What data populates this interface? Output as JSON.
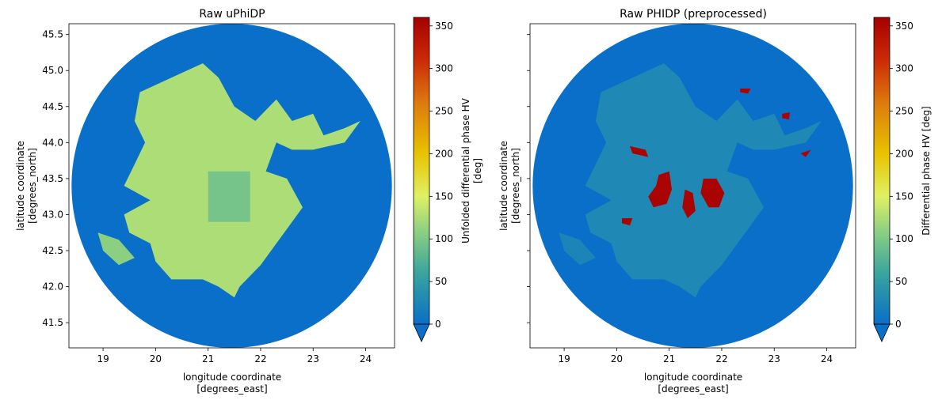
{
  "colormap": {
    "name": "HomeyerRainbow-like",
    "stops": [
      {
        "v": 0,
        "c": "#0a6fc9"
      },
      {
        "v": 60,
        "c": "#3aa49d"
      },
      {
        "v": 110,
        "c": "#8fd180"
      },
      {
        "v": 150,
        "c": "#e0f064"
      },
      {
        "v": 200,
        "c": "#e8c300"
      },
      {
        "v": 260,
        "c": "#dd7a0e"
      },
      {
        "v": 310,
        "c": "#cc2a08"
      },
      {
        "v": 360,
        "c": "#a50000"
      }
    ],
    "under_color": "#0a6fc9"
  },
  "chart_data": [
    {
      "type": "heatmap",
      "title": "Raw uPhiDP",
      "xlabel": "longitude coordinate\n[degrees_east]",
      "ylabel": "latitude coordinate\n[degrees_north]",
      "xlim": [
        18.35,
        24.55
      ],
      "ylim": [
        41.15,
        45.65
      ],
      "xticks": [
        19,
        20,
        21,
        22,
        23,
        24
      ],
      "yticks": [
        41.5,
        42.0,
        42.5,
        43.0,
        43.5,
        44.0,
        44.5,
        45.0,
        45.5
      ],
      "ytick_labels": [
        "41.5",
        "42.0",
        "42.5",
        "43.0",
        "43.5",
        "44.0",
        "44.5",
        "45.0",
        "45.5"
      ],
      "radar_center": [
        21.45,
        43.4
      ],
      "radar_range_deg": {
        "lon": 3.05,
        "lat": 2.25
      },
      "background_value": 0,
      "colorbar": {
        "label": "Unfolded differential phase HV\n[deg]",
        "ticks": [
          0,
          50,
          100,
          150,
          200,
          250,
          300,
          350
        ],
        "range": [
          0,
          360
        ],
        "extend": "min"
      },
      "regions": [
        {
          "value": 125,
          "polygon": [
            [
              19.7,
              44.7
            ],
            [
              20.3,
              44.9
            ],
            [
              20.9,
              45.1
            ],
            [
              21.2,
              44.9
            ],
            [
              21.5,
              44.5
            ],
            [
              21.9,
              44.3
            ],
            [
              22.3,
              44.6
            ],
            [
              22.6,
              44.3
            ],
            [
              23.0,
              44.4
            ],
            [
              23.2,
              44.1
            ],
            [
              23.6,
              44.2
            ],
            [
              23.9,
              44.3
            ],
            [
              23.6,
              44.0
            ],
            [
              23.0,
              43.9
            ],
            [
              22.6,
              43.9
            ],
            [
              22.3,
              44.0
            ],
            [
              22.1,
              43.6
            ],
            [
              22.5,
              43.5
            ],
            [
              22.8,
              43.1
            ],
            [
              22.5,
              42.8
            ],
            [
              22.2,
              42.5
            ],
            [
              22.0,
              42.3
            ],
            [
              21.6,
              42.0
            ],
            [
              21.5,
              41.85
            ],
            [
              21.2,
              42.0
            ],
            [
              20.9,
              42.1
            ],
            [
              20.3,
              42.1
            ],
            [
              20.0,
              42.35
            ],
            [
              19.9,
              42.6
            ],
            [
              19.5,
              42.75
            ],
            [
              19.4,
              43.0
            ],
            [
              19.9,
              43.2
            ],
            [
              19.4,
              43.4
            ],
            [
              19.6,
              43.7
            ],
            [
              19.8,
              44.0
            ],
            [
              19.6,
              44.3
            ]
          ]
        },
        {
          "value": 108,
          "polygon": [
            [
              18.9,
              42.75
            ],
            [
              19.3,
              42.65
            ],
            [
              19.6,
              42.4
            ],
            [
              19.3,
              42.3
            ],
            [
              19.0,
              42.5
            ]
          ]
        },
        {
          "value": 95,
          "polygon": [
            [
              21.0,
              42.9
            ],
            [
              21.8,
              42.9
            ],
            [
              21.8,
              43.6
            ],
            [
              21.0,
              43.6
            ]
          ]
        }
      ]
    },
    {
      "type": "heatmap",
      "title": "Raw PHIDP (preprocessed)",
      "xlabel": "longitude coordinate\n[degrees_east]",
      "ylabel": "latitude coordinate\n[degrees_north]",
      "xlim": [
        18.35,
        24.55
      ],
      "ylim": [
        41.15,
        45.65
      ],
      "xticks": [
        19,
        20,
        21,
        22,
        23,
        24
      ],
      "yticks": [
        41.5,
        42.0,
        42.5,
        43.0,
        43.5,
        44.0,
        44.5,
        45.0,
        45.5
      ],
      "ytick_labels": [],
      "radar_center": [
        21.45,
        43.4
      ],
      "radar_range_deg": {
        "lon": 3.05,
        "lat": 2.25
      },
      "background_value": 0,
      "colorbar": {
        "label": "Differential phase HV [deg]",
        "ticks": [
          0,
          50,
          100,
          150,
          200,
          250,
          300,
          350
        ],
        "range": [
          0,
          360
        ],
        "extend": "min"
      },
      "regions": [
        {
          "value": 28,
          "polygon": [
            [
              19.7,
              44.7
            ],
            [
              20.3,
              44.9
            ],
            [
              20.9,
              45.1
            ],
            [
              21.2,
              44.9
            ],
            [
              21.5,
              44.5
            ],
            [
              21.9,
              44.3
            ],
            [
              22.3,
              44.6
            ],
            [
              22.6,
              44.3
            ],
            [
              23.0,
              44.4
            ],
            [
              23.2,
              44.1
            ],
            [
              23.6,
              44.2
            ],
            [
              23.9,
              44.3
            ],
            [
              23.6,
              44.0
            ],
            [
              23.0,
              43.9
            ],
            [
              22.6,
              43.9
            ],
            [
              22.3,
              44.0
            ],
            [
              22.1,
              43.6
            ],
            [
              22.5,
              43.5
            ],
            [
              22.8,
              43.1
            ],
            [
              22.5,
              42.8
            ],
            [
              22.2,
              42.5
            ],
            [
              22.0,
              42.3
            ],
            [
              21.6,
              42.0
            ],
            [
              21.5,
              41.85
            ],
            [
              21.2,
              42.0
            ],
            [
              20.9,
              42.1
            ],
            [
              20.3,
              42.1
            ],
            [
              20.0,
              42.35
            ],
            [
              19.9,
              42.6
            ],
            [
              19.5,
              42.75
            ],
            [
              19.4,
              43.0
            ],
            [
              19.9,
              43.2
            ],
            [
              19.4,
              43.4
            ],
            [
              19.6,
              43.7
            ],
            [
              19.8,
              44.0
            ],
            [
              19.6,
              44.3
            ]
          ]
        },
        {
          "value": 24,
          "polygon": [
            [
              18.9,
              42.75
            ],
            [
              19.3,
              42.65
            ],
            [
              19.6,
              42.4
            ],
            [
              19.3,
              42.3
            ],
            [
              19.0,
              42.5
            ]
          ]
        },
        {
          "value": 355,
          "polygon": [
            [
              20.8,
              43.55
            ],
            [
              21.0,
              43.6
            ],
            [
              21.05,
              43.35
            ],
            [
              20.95,
              43.15
            ],
            [
              20.7,
              43.1
            ],
            [
              20.6,
              43.25
            ],
            [
              20.75,
              43.4
            ]
          ]
        },
        {
          "value": 355,
          "polygon": [
            [
              21.3,
              43.35
            ],
            [
              21.45,
              43.3
            ],
            [
              21.5,
              43.05
            ],
            [
              21.35,
              42.95
            ],
            [
              21.25,
              43.1
            ]
          ]
        },
        {
          "value": 355,
          "polygon": [
            [
              21.65,
              43.5
            ],
            [
              21.9,
              43.5
            ],
            [
              22.05,
              43.3
            ],
            [
              21.95,
              43.1
            ],
            [
              21.75,
              43.1
            ],
            [
              21.6,
              43.3
            ]
          ]
        },
        {
          "value": 355,
          "polygon": [
            [
              20.25,
              43.95
            ],
            [
              20.55,
              43.9
            ],
            [
              20.6,
              43.8
            ],
            [
              20.3,
              43.85
            ]
          ]
        },
        {
          "value": 355,
          "polygon": [
            [
              20.1,
              42.95
            ],
            [
              20.3,
              42.95
            ],
            [
              20.25,
              42.85
            ],
            [
              20.1,
              42.88
            ]
          ]
        },
        {
          "value": 355,
          "polygon": [
            [
              22.35,
              44.75
            ],
            [
              22.55,
              44.75
            ],
            [
              22.5,
              44.68
            ],
            [
              22.35,
              44.7
            ]
          ]
        },
        {
          "value": 355,
          "polygon": [
            [
              23.15,
              44.4
            ],
            [
              23.3,
              44.42
            ],
            [
              23.28,
              44.32
            ],
            [
              23.15,
              44.34
            ]
          ]
        },
        {
          "value": 355,
          "polygon": [
            [
              23.5,
              43.85
            ],
            [
              23.7,
              43.9
            ],
            [
              23.6,
              43.8
            ]
          ]
        }
      ]
    }
  ]
}
